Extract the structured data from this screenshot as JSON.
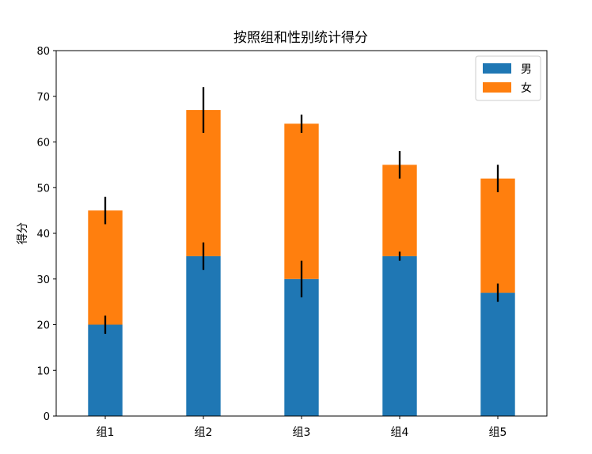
{
  "chart_data": {
    "type": "bar",
    "stacked": true,
    "title": "按照组和性别统计得分",
    "xlabel": "",
    "ylabel": "得分",
    "categories": [
      "组1",
      "组2",
      "组3",
      "组4",
      "组5"
    ],
    "ylim": [
      0,
      80
    ],
    "yticks": [
      0,
      10,
      20,
      30,
      40,
      50,
      60,
      70,
      80
    ],
    "grid": false,
    "legend_position": "top-right",
    "series": [
      {
        "name": "男",
        "color": "#1f77b4",
        "values": [
          20,
          35,
          30,
          35,
          27
        ],
        "errors": [
          2,
          3,
          4,
          1,
          2
        ]
      },
      {
        "name": "女",
        "color": "#ff7f0e",
        "values": [
          25,
          32,
          34,
          20,
          25
        ],
        "errors": [
          3,
          5,
          2,
          3,
          3
        ]
      }
    ]
  }
}
